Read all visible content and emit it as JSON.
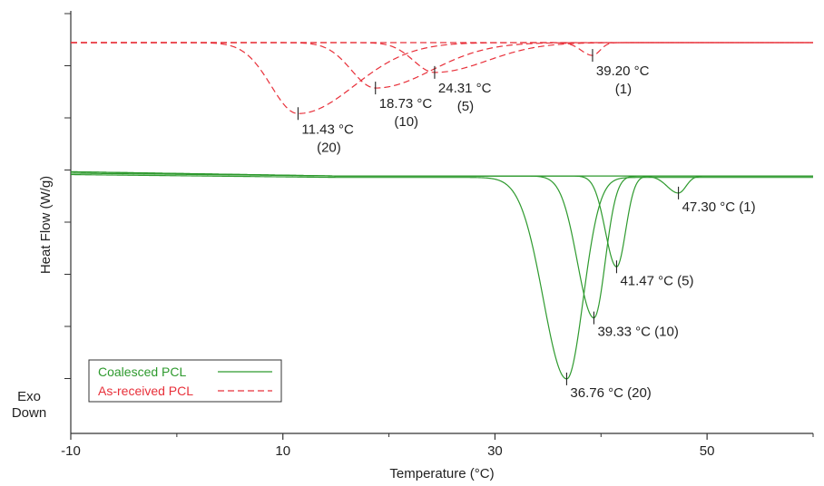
{
  "chart_data": {
    "type": "line",
    "title": "",
    "xlabel": "Temperature (°C)",
    "ylabel": "Heat Flow (W/g)",
    "xlim": [
      -10,
      60
    ],
    "x_ticks": [
      -10,
      10,
      30,
      50
    ],
    "corner_label": [
      "Exo",
      "Down"
    ],
    "grid": false,
    "legend_position": "bottom-left",
    "legend": [
      {
        "label": "Coalesced PCL",
        "color": "#2e9a2e",
        "dash": "solid"
      },
      {
        "label": "As-received PCL",
        "color": "#e8303a",
        "dash": "dashed"
      }
    ],
    "series": [
      {
        "name": "As-received PCL (1)",
        "group": "As-received PCL",
        "color": "#e8303a",
        "rate": 1,
        "baseline": 0.0,
        "peak_x": 39.2,
        "depth": 0.45,
        "w_left": 1.5,
        "w_right": 1.0,
        "label": "39.20 °C",
        "sublabel": "(1)"
      },
      {
        "name": "As-received PCL (5)",
        "group": "As-received PCL",
        "color": "#e8303a",
        "rate": 5,
        "baseline": 0.0,
        "peak_x": 24.31,
        "depth": 1.05,
        "w_left": 2.8,
        "w_right": 7.0,
        "label": "24.31 °C",
        "sublabel": "(5)"
      },
      {
        "name": "As-received PCL (10)",
        "group": "As-received PCL",
        "color": "#e8303a",
        "rate": 10,
        "baseline": 0.0,
        "peak_x": 18.73,
        "depth": 1.6,
        "w_left": 3.2,
        "w_right": 7.5,
        "label": "18.73 °C",
        "sublabel": "(10)"
      },
      {
        "name": "As-received PCL (20)",
        "group": "As-received PCL",
        "color": "#e8303a",
        "rate": 20,
        "baseline": 0.0,
        "peak_x": 11.43,
        "depth": 2.5,
        "w_left": 3.6,
        "w_right": 7.5,
        "label": "11.43 °C",
        "sublabel": "(20)"
      },
      {
        "name": "Coalesced PCL (1)",
        "group": "Coalesced PCL",
        "color": "#2e9a2e",
        "rate": 1,
        "baseline": -4.7,
        "start": -4.55,
        "peak_x": 47.3,
        "depth": 0.6,
        "w_left": 1.5,
        "w_right": 1.0,
        "label": "47.30 °C (1)"
      },
      {
        "name": "Coalesced PCL (5)",
        "group": "Coalesced PCL",
        "color": "#2e9a2e",
        "rate": 5,
        "baseline": -4.7,
        "start": -4.55,
        "peak_x": 41.47,
        "depth": 3.2,
        "w_left": 1.5,
        "w_right": 1.2,
        "label": "41.47 °C (5)"
      },
      {
        "name": "Coalesced PCL (10)",
        "group": "Coalesced PCL",
        "color": "#2e9a2e",
        "rate": 10,
        "baseline": -4.7,
        "start": -4.6,
        "peak_x": 39.33,
        "depth": 5.0,
        "w_left": 2.2,
        "w_right": 1.5,
        "label": "39.33 °C (10)"
      },
      {
        "name": "Coalesced PCL (20)",
        "group": "Coalesced PCL",
        "color": "#2e9a2e",
        "rate": 20,
        "baseline": -4.75,
        "start": -4.65,
        "peak_x": 36.76,
        "depth": 7.1,
        "w_left": 3.1,
        "w_right": 2.2,
        "label": "36.76 °C (20)"
      }
    ]
  }
}
